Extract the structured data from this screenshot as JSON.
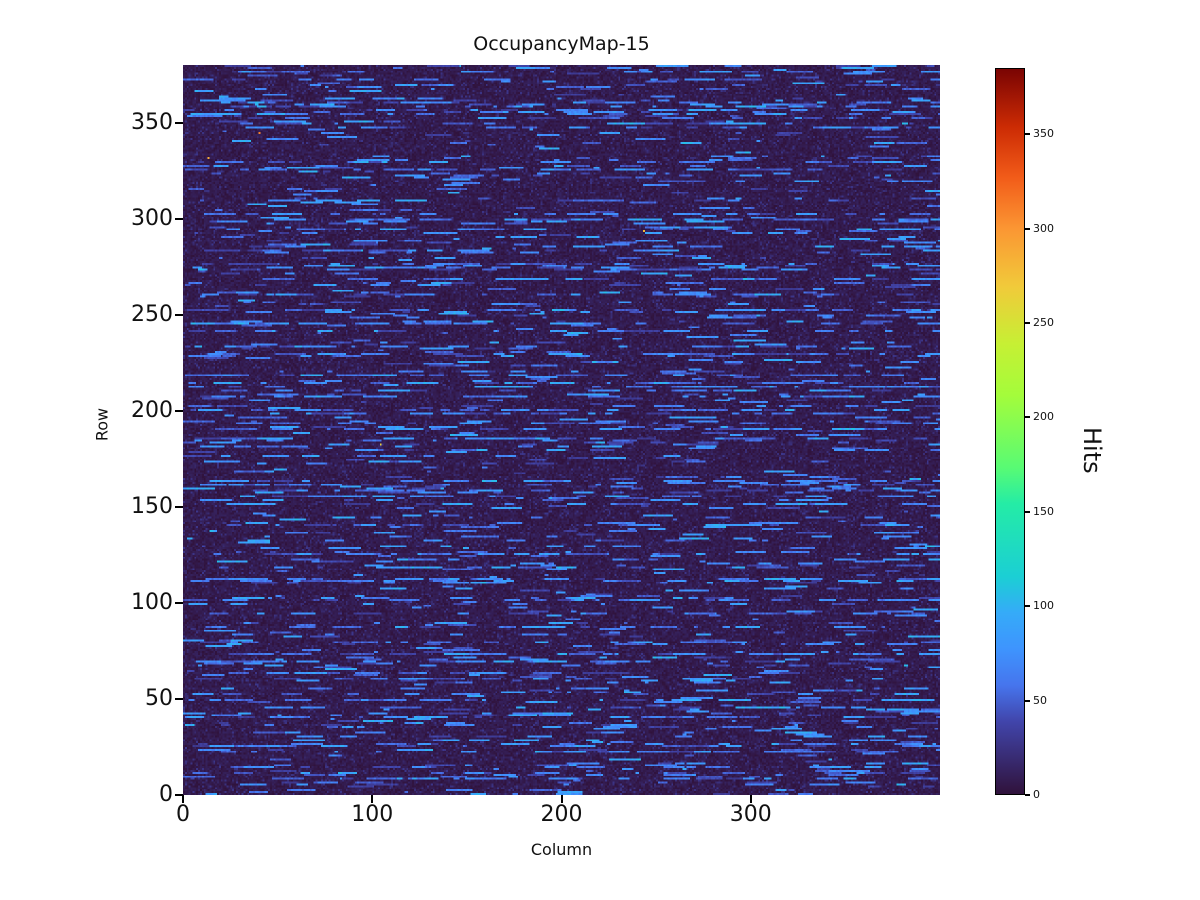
{
  "labels": {
    "title": "OccupancyMap-15",
    "xlabel": "Column",
    "ylabel": "Row",
    "colorbar_label": "Hits"
  },
  "axes": {
    "x_ticks": [
      0,
      100,
      200,
      300
    ],
    "x_max": 400,
    "y_ticks": [
      0,
      50,
      100,
      150,
      200,
      250,
      300,
      350
    ],
    "y_max": 380
  },
  "colorbar": {
    "ticks": [
      0,
      50,
      100,
      150,
      200,
      250,
      300,
      350
    ],
    "vmin": 0,
    "vmax": 385
  },
  "chart_data": {
    "type": "heatmap",
    "title": "OccupancyMap-15",
    "xlabel": "Column",
    "ylabel": "Row",
    "value_label": "Hits",
    "grid": {
      "cols": 400,
      "rows": 380
    },
    "value_range": [
      0,
      385
    ],
    "colormap": "turbo",
    "colormap_stops": [
      [
        0.0,
        "#30123b"
      ],
      [
        0.1,
        "#4145ab"
      ],
      [
        0.15,
        "#4675ed"
      ],
      [
        0.2,
        "#3e94fe"
      ],
      [
        0.25,
        "#35abf8"
      ],
      [
        0.3,
        "#1bcfd4"
      ],
      [
        0.4,
        "#24eca6"
      ],
      [
        0.45,
        "#58fb74"
      ],
      [
        0.55,
        "#a4fc3b"
      ],
      [
        0.62,
        "#c6f034"
      ],
      [
        0.7,
        "#f1ca3a"
      ],
      [
        0.78,
        "#fb9633"
      ],
      [
        0.85,
        "#f25c19"
      ],
      [
        0.92,
        "#cc2b04"
      ],
      [
        1.0,
        "#7a0403"
      ]
    ],
    "pattern": {
      "description": "Mostly near-zero dark background with horizontal dashed streaks of moderate hit counts; a few rare high-value outlier pixels.",
      "background_value_range": [
        0,
        12
      ],
      "background_speckle_value_range": [
        8,
        28
      ],
      "streak_value_range": [
        30,
        95
      ],
      "dash_length_range": [
        2,
        18
      ],
      "row_profile": {
        "heavy_row_prob": 0.18,
        "medium_row_prob": 0.37,
        "heavy_dashes": [
          16,
          30
        ],
        "medium_dashes": [
          4,
          12
        ],
        "sparse_dashes": [
          0,
          3
        ]
      },
      "outlier_count": 4,
      "outlier_value_range": [
        250,
        385
      ],
      "render_seed": 15
    }
  }
}
